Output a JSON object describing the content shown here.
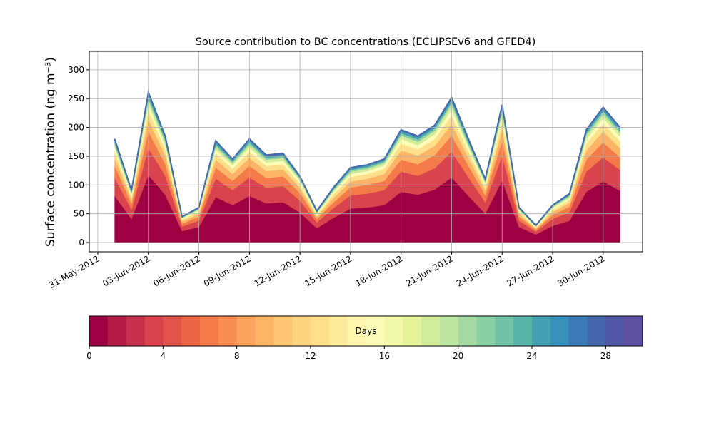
{
  "chart_data": {
    "type": "stacked_area",
    "title": "Source contribution to BC concentrations (ECLIPSEv6 and GFED4)",
    "y_label": "Surface concentration (ng m⁻³)",
    "x": [
      "2012-06-01",
      "2012-06-02",
      "2012-06-03",
      "2012-06-04",
      "2012-06-05",
      "2012-06-06",
      "2012-06-07",
      "2012-06-08",
      "2012-06-09",
      "2012-06-10",
      "2012-06-11",
      "2012-06-12",
      "2012-06-13",
      "2012-06-14",
      "2012-06-15",
      "2012-06-16",
      "2012-06-17",
      "2012-06-18",
      "2012-06-19",
      "2012-06-20",
      "2012-06-21",
      "2012-06-22",
      "2012-06-23",
      "2012-06-24",
      "2012-06-25",
      "2012-06-26",
      "2012-06-27",
      "2012-06-28",
      "2012-06-29",
      "2012-06-30",
      "2012-07-01"
    ],
    "series": [
      {
        "color": "#9e0142",
        "values": [
          81,
          41,
          117,
          83,
          20,
          27,
          79,
          65,
          81,
          68,
          70,
          52,
          25,
          43,
          59,
          61,
          65,
          88,
          83,
          92,
          113,
          81,
          50,
          108,
          27,
          14,
          29,
          38,
          88,
          106,
          90
        ]
      },
      {
        "color": "#d8434d",
        "values": [
          32,
          16,
          47,
          33,
          8,
          11,
          32,
          26,
          32,
          27,
          28,
          21,
          10,
          17,
          23,
          24,
          26,
          35,
          33,
          37,
          45,
          32,
          20,
          43,
          11,
          5,
          12,
          15,
          35,
          42,
          36
        ]
      },
      {
        "color": "#f47a49",
        "values": [
          20,
          10,
          29,
          20,
          5,
          7,
          19,
          16,
          20,
          17,
          17,
          13,
          6,
          10,
          14,
          15,
          16,
          21,
          20,
          23,
          28,
          20,
          12,
          26,
          7,
          3,
          7,
          9,
          21,
          26,
          22
        ]
      },
      {
        "color": "#fdb466",
        "values": [
          14,
          7,
          21,
          15,
          4,
          5,
          14,
          12,
          14,
          12,
          12,
          9,
          4,
          8,
          10,
          11,
          12,
          16,
          15,
          16,
          20,
          14,
          9,
          19,
          5,
          2,
          5,
          7,
          16,
          19,
          16
        ]
      },
      {
        "color": "#fee08b",
        "values": [
          11,
          5,
          16,
          11,
          3,
          4,
          11,
          9,
          11,
          9,
          9,
          7,
          3,
          6,
          8,
          8,
          9,
          12,
          11,
          12,
          15,
          11,
          7,
          14,
          4,
          2,
          4,
          5,
          12,
          14,
          12
        ]
      },
      {
        "color": "#fbfdb9",
        "values": [
          7,
          4,
          10,
          7,
          2,
          2,
          7,
          6,
          7,
          6,
          6,
          5,
          2,
          4,
          5,
          5,
          6,
          8,
          7,
          8,
          10,
          7,
          4,
          10,
          2,
          1,
          3,
          3,
          8,
          9,
          8
        ]
      },
      {
        "color": "#d2ec9b",
        "values": [
          5,
          3,
          8,
          6,
          1,
          2,
          5,
          4,
          5,
          5,
          5,
          3,
          2,
          3,
          4,
          4,
          4,
          6,
          6,
          6,
          8,
          5,
          3,
          7,
          2,
          1,
          2,
          3,
          6,
          7,
          6
        ]
      },
      {
        "color": "#89d0a4",
        "values": [
          4,
          2,
          5,
          4,
          1,
          1,
          4,
          3,
          4,
          3,
          3,
          2,
          1,
          2,
          3,
          3,
          3,
          4,
          4,
          4,
          5,
          4,
          2,
          5,
          1,
          1,
          1,
          2,
          4,
          5,
          4
        ]
      },
      {
        "color": "#45a1b1",
        "values": [
          4,
          2,
          5,
          4,
          1,
          1,
          4,
          3,
          4,
          3,
          3,
          2,
          1,
          2,
          3,
          3,
          3,
          4,
          4,
          4,
          5,
          4,
          2,
          5,
          1,
          1,
          1,
          2,
          4,
          5,
          4
        ]
      },
      {
        "color": "#4568ad",
        "values": [
          2,
          1,
          3,
          2,
          0,
          1,
          2,
          1,
          2,
          2,
          2,
          1,
          1,
          1,
          1,
          1,
          1,
          2,
          2,
          2,
          3,
          2,
          1,
          2,
          1,
          0,
          1,
          1,
          2,
          2,
          2
        ]
      }
    ],
    "xlim": [
      "2012-05-31",
      "2012-07-02"
    ],
    "xticks": [
      {
        "value": "2012-05-31",
        "label": "31-May-2012"
      },
      {
        "value": "2012-06-03",
        "label": "03-Jun-2012"
      },
      {
        "value": "2012-06-06",
        "label": "06-Jun-2012"
      },
      {
        "value": "2012-06-09",
        "label": "09-Jun-2012"
      },
      {
        "value": "2012-06-12",
        "label": "12-Jun-2012"
      },
      {
        "value": "2012-06-15",
        "label": "15-Jun-2012"
      },
      {
        "value": "2012-06-18",
        "label": "18-Jun-2012"
      },
      {
        "value": "2012-06-21",
        "label": "21-Jun-2012"
      },
      {
        "value": "2012-06-24",
        "label": "24-Jun-2012"
      },
      {
        "value": "2012-06-27",
        "label": "27-Jun-2012"
      },
      {
        "value": "2012-06-30",
        "label": "30-Jun-2012"
      }
    ],
    "ylim": [
      -16,
      332
    ],
    "yticks": [
      0,
      50,
      100,
      150,
      200,
      250,
      300
    ],
    "grid": true,
    "colorbar": {
      "label": "Days",
      "lim": [
        0,
        30
      ],
      "ticks": [
        0,
        4,
        8,
        12,
        16,
        20,
        24,
        28
      ],
      "colors": [
        "#9e0142",
        "#b31a46",
        "#c6304c",
        "#d8434d",
        "#e25349",
        "#ec6446",
        "#f47a49",
        "#f88e52",
        "#fba25c",
        "#fdb466",
        "#fdc574",
        "#fed481",
        "#fee08b",
        "#feeb9d",
        "#fff5ae",
        "#fbfdb9",
        "#f1f9a9",
        "#e4f49b",
        "#d2ec9b",
        "#bde4a0",
        "#a4daa4",
        "#89d0a4",
        "#70c4a5",
        "#59b4aa",
        "#45a1b1",
        "#3890bc",
        "#3a7bb7",
        "#4568ad",
        "#5157a4",
        "#5e4fa2"
      ]
    }
  }
}
